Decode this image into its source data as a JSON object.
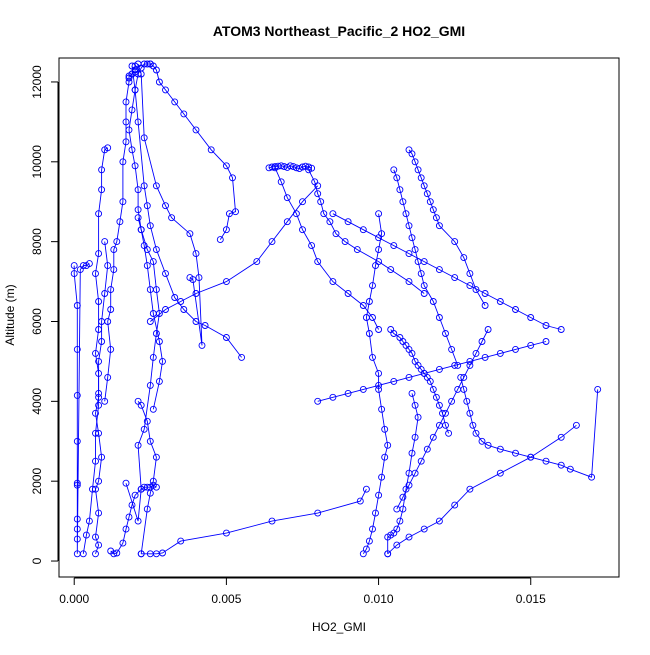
{
  "chart_data": {
    "type": "line",
    "title": "ATOM3 Northeast_Pacific_2 HO2_GMI",
    "xlabel": "HO2_GMI",
    "ylabel": "Altitude (m)",
    "xlim": [
      -0.0005,
      0.0179
    ],
    "ylim": [
      -400,
      12600
    ],
    "xticks": [
      {
        "value": 0.0,
        "label": "0.000"
      },
      {
        "value": 0.005,
        "label": "0.005"
      },
      {
        "value": 0.01,
        "label": "0.010"
      },
      {
        "value": 0.015,
        "label": "0.015"
      }
    ],
    "yticks": [
      {
        "value": 0,
        "label": "0"
      },
      {
        "value": 2000,
        "label": "2000"
      },
      {
        "value": 4000,
        "label": "4000"
      },
      {
        "value": 6000,
        "label": "6000"
      },
      {
        "value": 8000,
        "label": "8000"
      },
      {
        "value": 10000,
        "label": "10000"
      },
      {
        "value": 12000,
        "label": "12000"
      }
    ],
    "grid": false,
    "series_color": "#0000ff",
    "series": [
      {
        "x": [
          0.0,
          0.0,
          0.0001,
          0.0001,
          0.0001,
          0.0001,
          0.0001,
          0.0001,
          0.0001,
          0.0001,
          0.0001,
          0.0001,
          0.0002,
          0.0003,
          0.0004,
          0.0005
        ],
        "y": [
          7400,
          7200,
          6400,
          5300,
          4150,
          3000,
          1950,
          1900,
          1050,
          800,
          550,
          180,
          7300,
          7400,
          7400,
          7450
        ]
      },
      {
        "x": [
          0.0003,
          0.0004,
          0.0005,
          0.0006,
          0.0007,
          0.0007,
          0.0008,
          0.0008,
          0.0008,
          0.0009,
          0.0009,
          0.001,
          0.0011,
          0.001
        ],
        "y": [
          180,
          650,
          1000,
          1800,
          2500,
          3200,
          3900,
          4200,
          5000,
          5500,
          6000,
          6700,
          7400,
          8000
        ]
      },
      {
        "x": [
          0.0007,
          0.0008,
          0.0007,
          0.0008,
          0.0007,
          0.0008,
          0.0009,
          0.0008,
          0.0007,
          0.0008,
          0.0008,
          0.0007,
          0.0008,
          0.0008,
          0.0007,
          0.0008,
          0.0008,
          0.0009,
          0.0009,
          0.001,
          0.0011
        ],
        "y": [
          180,
          400,
          600,
          1200,
          1800,
          2000,
          2600,
          3200,
          3700,
          4100,
          4700,
          5200,
          5800,
          6500,
          7200,
          7700,
          8700,
          9300,
          9800,
          10300,
          10350
        ]
      },
      {
        "x": [
          0.001,
          0.0011,
          0.0012,
          0.0011,
          0.0012,
          0.0012,
          0.0013,
          0.0013,
          0.0014,
          0.0015,
          0.0016,
          0.0016,
          0.0017,
          0.0017,
          0.0017,
          0.0018,
          0.0018,
          0.0018,
          0.0019,
          0.0019,
          0.002,
          0.002,
          0.002
        ],
        "y": [
          4000,
          4600,
          5300,
          6000,
          6300,
          6800,
          7300,
          7800,
          8000,
          8500,
          9000,
          10000,
          10500,
          11000,
          11500,
          12000,
          12100,
          12150,
          12200,
          12200,
          12250,
          12300,
          12400
        ]
      },
      {
        "x": [
          0.0012,
          0.0013,
          0.0014,
          0.0016,
          0.0017,
          0.0018,
          0.0019,
          0.002,
          0.0022,
          0.0023,
          0.0024,
          0.0025,
          0.0026,
          0.0027
        ],
        "y": [
          250,
          180,
          200,
          450,
          800,
          1100,
          1400,
          1650,
          1800,
          1850,
          1850,
          1850,
          1900,
          1850
        ]
      },
      {
        "x": [
          0.0017,
          0.0021,
          0.0022,
          0.0021,
          0.0023,
          0.0025,
          0.0026,
          0.0027,
          0.0028,
          0.0027,
          0.0026,
          0.0024,
          0.0022,
          0.0021,
          0.0021,
          0.002,
          0.0019,
          0.0018,
          0.0019,
          0.002,
          0.0021,
          0.0022,
          0.0023,
          0.0024,
          0.0025
        ],
        "y": [
          1950,
          1000,
          1800,
          2900,
          3300,
          4400,
          5100,
          5700,
          6200,
          6800,
          7500,
          7800,
          8300,
          8800,
          9300,
          9900,
          10300,
          10800,
          11300,
          11800,
          12200,
          12350,
          12450,
          12450,
          12450
        ]
      },
      {
        "x": [
          0.0025,
          0.0026,
          0.0027,
          0.0028,
          0.003,
          0.0033,
          0.0036,
          0.004,
          0.0045,
          0.005,
          0.0052,
          0.0053,
          0.0051,
          0.005,
          0.0048
        ],
        "y": [
          12450,
          12400,
          12300,
          12000,
          11800,
          11500,
          11200,
          10800,
          10300,
          9900,
          9600,
          8750,
          8700,
          8300,
          8050
        ]
      },
      {
        "x": [
          0.0021,
          0.0022,
          0.0023,
          0.0027,
          0.003,
          0.0032,
          0.0038,
          0.004,
          0.0041,
          0.0042,
          0.0039,
          0.0038
        ],
        "y": [
          12450,
          12200,
          10600,
          9400,
          8900,
          8600,
          8200,
          7700,
          7100,
          5400,
          7050,
          7100
        ]
      },
      {
        "x": [
          0.0019,
          0.002,
          0.0021,
          0.0023,
          0.0024,
          0.0025,
          0.0027,
          0.003,
          0.0033,
          0.0036,
          0.004,
          0.0043,
          0.005,
          0.0055
        ],
        "y": [
          12400,
          11800,
          11000,
          9400,
          8900,
          8400,
          7800,
          7200,
          6600,
          6300,
          6000,
          5900,
          5600,
          5100
        ]
      },
      {
        "x": [
          0.0022,
          0.0024,
          0.0025,
          0.0026,
          0.0027,
          0.0025,
          0.0024,
          0.0022,
          0.0021
        ],
        "y": [
          180,
          1300,
          1700,
          2000,
          2600,
          3000,
          3500,
          3900,
          4000
        ]
      },
      {
        "x": [
          0.0022,
          0.0025,
          0.0027,
          0.0029,
          0.0035,
          0.005,
          0.0065,
          0.008,
          0.0094,
          0.0096
        ],
        "y": [
          180,
          180,
          180,
          200,
          500,
          700,
          1000,
          1200,
          1500,
          1800
        ]
      },
      {
        "x": [
          0.0026,
          0.0028,
          0.0029,
          0.0028,
          0.0026,
          0.0025,
          0.0024,
          0.0023,
          0.0022,
          0.0021
        ],
        "y": [
          3800,
          4500,
          5000,
          5500,
          6200,
          6800,
          7400,
          7900,
          8300,
          8600
        ]
      },
      {
        "x": [
          0.0025,
          0.003,
          0.0035,
          0.004,
          0.005,
          0.006,
          0.0065,
          0.007,
          0.0075,
          0.008
        ],
        "y": [
          6000,
          6300,
          6500,
          6700,
          7000,
          7500,
          8000,
          8500,
          9000,
          9400
        ]
      },
      {
        "x": [
          0.0064,
          0.0065,
          0.0066,
          0.0067,
          0.0068,
          0.0069,
          0.007,
          0.0071,
          0.0072,
          0.0073,
          0.0074,
          0.0075,
          0.0076,
          0.0077,
          0.0078
        ],
        "y": [
          9850,
          9870,
          9880,
          9890,
          9900,
          9880,
          9860,
          9900,
          9880,
          9850,
          9830,
          9870,
          9890,
          9870,
          9840
        ]
      },
      {
        "x": [
          0.0066,
          0.0068,
          0.007,
          0.0073,
          0.0075,
          0.0078,
          0.008,
          0.0085,
          0.009,
          0.0095,
          0.0098,
          0.01
        ],
        "y": [
          9850,
          9500,
          9100,
          8700,
          8300,
          7900,
          7500,
          7000,
          6700,
          6400,
          6100,
          5800
        ]
      },
      {
        "x": [
          0.0077,
          0.0079,
          0.008,
          0.0081,
          0.0082,
          0.0084,
          0.0086,
          0.0089,
          0.0093,
          0.01,
          0.0104,
          0.011,
          0.0115
        ],
        "y": [
          9800,
          9500,
          9200,
          9000,
          8700,
          8500,
          8200,
          8000,
          7800,
          7500,
          7300,
          7000,
          6700
        ]
      },
      {
        "x": [
          0.01,
          0.0101,
          0.01,
          0.0099,
          0.0098,
          0.0097,
          0.0096,
          0.0097,
          0.0098,
          0.01,
          0.01,
          0.0101,
          0.0102,
          0.0103,
          0.0102,
          0.0101,
          0.01,
          0.0099,
          0.0098,
          0.0097,
          0.0096,
          0.0095
        ],
        "y": [
          8700,
          8200,
          7800,
          7400,
          6900,
          6500,
          6100,
          5700,
          5100,
          4700,
          4300,
          3800,
          3300,
          2900,
          2600,
          2100,
          1650,
          1200,
          800,
          500,
          300,
          180
        ]
      },
      {
        "x": [
          0.0103,
          0.0103,
          0.0104,
          0.0105,
          0.0106,
          0.0107,
          0.0108,
          0.0109,
          0.011,
          0.0111,
          0.0112,
          0.0113,
          0.0112,
          0.0111
        ],
        "y": [
          180,
          600,
          650,
          700,
          800,
          1000,
          1300,
          1800,
          2200,
          2700,
          3100,
          3600,
          3900,
          4200
        ]
      },
      {
        "x": [
          0.0104,
          0.0105,
          0.0107,
          0.0108,
          0.0109,
          0.011,
          0.0111,
          0.0112,
          0.0113,
          0.0114,
          0.0115,
          0.0116,
          0.0117,
          0.0118,
          0.0119,
          0.012,
          0.0121,
          0.0122,
          0.0123
        ],
        "y": [
          5800,
          5700,
          5600,
          5500,
          5400,
          5300,
          5200,
          5000,
          4900,
          4800,
          4700,
          4600,
          4500,
          4300,
          4100,
          3900,
          3700,
          3400,
          3200
        ]
      },
      {
        "x": [
          0.0127,
          0.0128,
          0.0129,
          0.013,
          0.0131,
          0.0132,
          0.0134,
          0.0136,
          0.014,
          0.0145,
          0.015,
          0.0155,
          0.016,
          0.0163,
          0.017,
          0.0172
        ],
        "y": [
          4600,
          4300,
          4000,
          3700,
          3400,
          3200,
          3000,
          2900,
          2800,
          2700,
          2600,
          2500,
          2400,
          2300,
          2100,
          4300
        ]
      },
      {
        "x": [
          0.0085,
          0.009,
          0.0095,
          0.01,
          0.0105,
          0.011,
          0.0115,
          0.012,
          0.0125,
          0.013,
          0.0135,
          0.014,
          0.0145,
          0.015,
          0.0155,
          0.016
        ],
        "y": [
          8700,
          8500,
          8300,
          8100,
          7900,
          7700,
          7500,
          7300,
          7100,
          6900,
          6700,
          6500,
          6300,
          6100,
          5900,
          5800
        ]
      },
      {
        "x": [
          0.011,
          0.0111,
          0.0112,
          0.0113,
          0.0114,
          0.0115,
          0.0116,
          0.0117,
          0.0118,
          0.0119,
          0.012,
          0.0125,
          0.0128,
          0.013,
          0.0132,
          0.0135
        ],
        "y": [
          10300,
          10200,
          10000,
          9800,
          9600,
          9400,
          9200,
          9000,
          8800,
          8600,
          8400,
          8000,
          7600,
          7200,
          6800,
          6400
        ]
      },
      {
        "x": [
          0.0105,
          0.0106,
          0.0107,
          0.0108,
          0.0109,
          0.011,
          0.0111,
          0.0112,
          0.0113,
          0.0114,
          0.0115,
          0.0118,
          0.012,
          0.0122,
          0.0124,
          0.0126
        ],
        "y": [
          9800,
          9600,
          9300,
          9000,
          8700,
          8400,
          8100,
          7800,
          7500,
          7200,
          6900,
          6500,
          6100,
          5700,
          5300,
          4900
        ]
      },
      {
        "x": [
          0.0106,
          0.0108,
          0.011,
          0.0112,
          0.0114,
          0.0116,
          0.0118,
          0.012,
          0.0122,
          0.0124,
          0.0126,
          0.0128,
          0.013,
          0.0132,
          0.0134,
          0.0136
        ],
        "y": [
          1300,
          1600,
          1900,
          2200,
          2500,
          2800,
          3100,
          3400,
          3700,
          4000,
          4300,
          4600,
          4900,
          5200,
          5500,
          5800
        ]
      },
      {
        "x": [
          0.0103,
          0.0106,
          0.011,
          0.0115,
          0.012,
          0.0125,
          0.013,
          0.014,
          0.015,
          0.016,
          0.0165
        ],
        "y": [
          180,
          400,
          600,
          800,
          1000,
          1400,
          1800,
          2200,
          2600,
          3100,
          3400
        ]
      },
      {
        "x": [
          0.008,
          0.0085,
          0.009,
          0.0095,
          0.01,
          0.0105,
          0.011,
          0.0115,
          0.012,
          0.0125,
          0.013,
          0.0135,
          0.014,
          0.0145,
          0.015,
          0.0155
        ],
        "y": [
          4000,
          4100,
          4200,
          4300,
          4400,
          4500,
          4600,
          4700,
          4800,
          4900,
          5000,
          5100,
          5200,
          5300,
          5400,
          5500
        ]
      }
    ]
  }
}
